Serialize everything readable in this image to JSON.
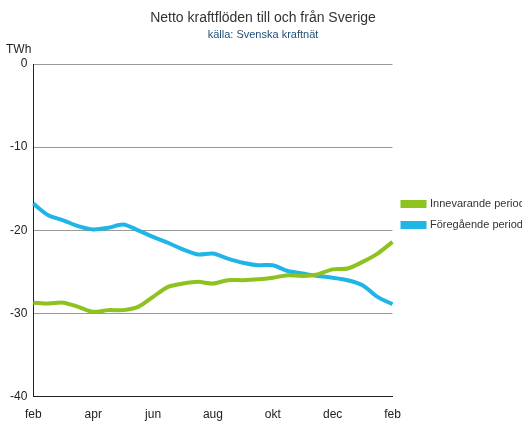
{
  "chart_data": {
    "type": "line",
    "title": "Netto kraftflöden till och från Sverige",
    "subtitle": "källa: Svenska kraftnät",
    "y_label": "TWh",
    "categories": [
      "feb",
      null,
      null,
      null,
      "apr",
      null,
      null,
      null,
      "jun",
      null,
      null,
      null,
      "aug",
      null,
      null,
      null,
      "okt",
      null,
      null,
      null,
      "dec",
      null,
      null,
      null,
      "feb"
    ],
    "series": [
      {
        "name": "Innevarande period, Sverige",
        "color": "#8dc21f",
        "values": [
          -28.7,
          -28.8,
          -28.7,
          -29.2,
          -29.8,
          -29.6,
          -29.6,
          -29.2,
          -28.0,
          -26.8,
          -26.4,
          -26.2,
          -26.4,
          -26.0,
          -26.0,
          -25.9,
          -25.7,
          -25.4,
          -25.5,
          -25.3,
          -24.7,
          -24.6,
          -23.8,
          -22.8,
          -21.4
        ]
      },
      {
        "name": "Föregående period, Sverige",
        "color": "#1fb5e6",
        "values": [
          -16.8,
          -18.2,
          -18.8,
          -19.5,
          -19.9,
          -19.7,
          -19.3,
          -20.0,
          -20.8,
          -21.5,
          -22.3,
          -22.9,
          -22.8,
          -23.4,
          -23.9,
          -24.2,
          -24.2,
          -24.9,
          -25.2,
          -25.5,
          -25.7,
          -26.0,
          -26.6,
          -28.0,
          -28.9
        ]
      }
    ],
    "ylim": [
      -40,
      0
    ],
    "yticks": [
      -40,
      -30,
      -20,
      -10,
      0
    ],
    "grid": true,
    "legend": "right"
  }
}
